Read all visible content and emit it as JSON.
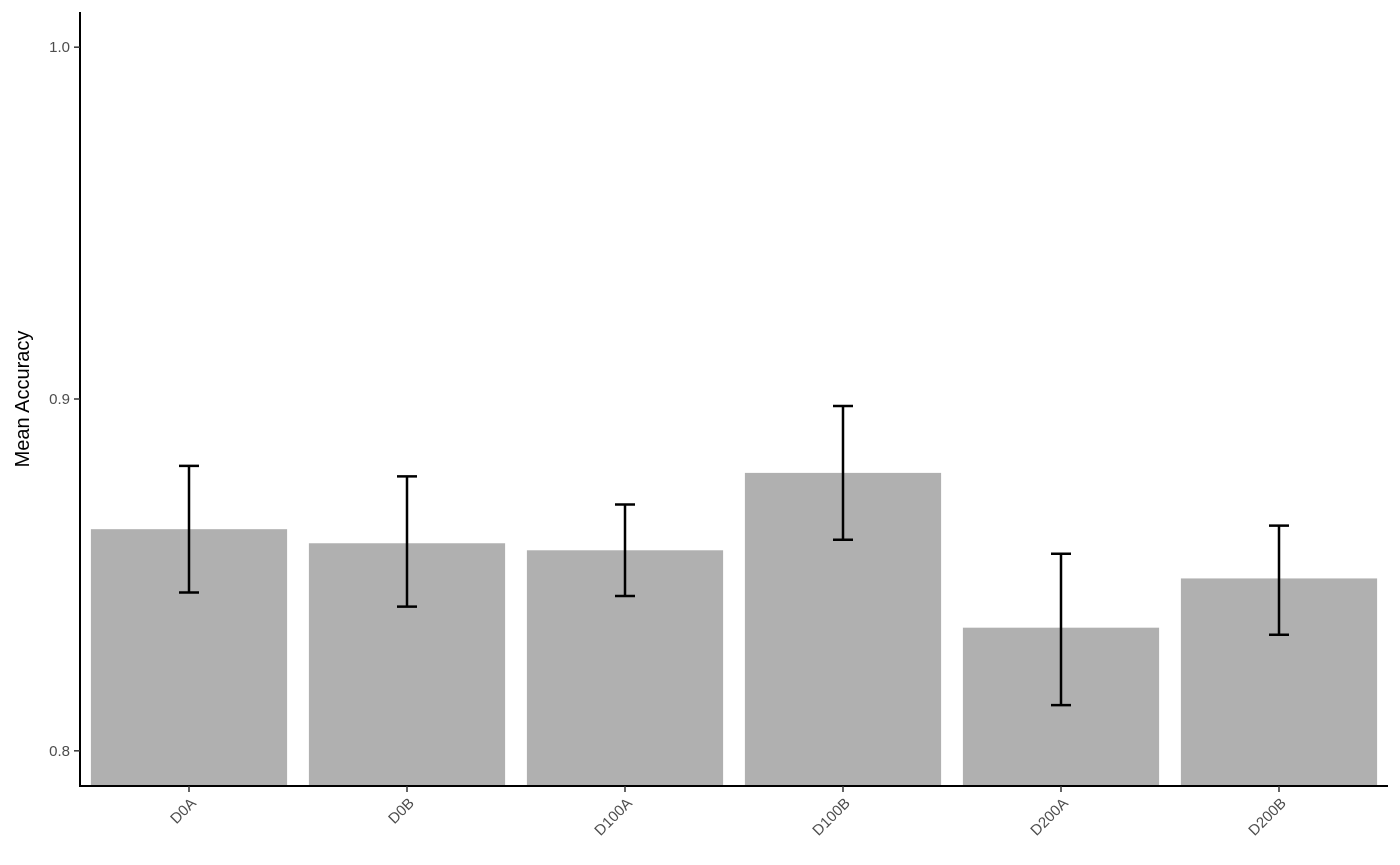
{
  "chart_data": {
    "type": "bar",
    "title": "",
    "xlabel": "",
    "ylabel": "Mean Accuracy",
    "categories": [
      "D0A",
      "D0B",
      "D100A",
      "D100B",
      "D200A",
      "D200B"
    ],
    "values": [
      0.863,
      0.859,
      0.857,
      0.879,
      0.835,
      0.849
    ],
    "error_low": [
      0.845,
      0.841,
      0.844,
      0.86,
      0.813,
      0.833
    ],
    "error_high": [
      0.881,
      0.878,
      0.87,
      0.898,
      0.856,
      0.864
    ],
    "yticks": [
      0.8,
      0.9,
      1.0
    ],
    "ytick_labels": [
      "0.8",
      "0.9",
      "1.0"
    ],
    "ylim": [
      0.79,
      1.01
    ],
    "bar_color": "#b0b0b0",
    "errorbar_color": "#000000",
    "grid": false,
    "legend": false
  }
}
